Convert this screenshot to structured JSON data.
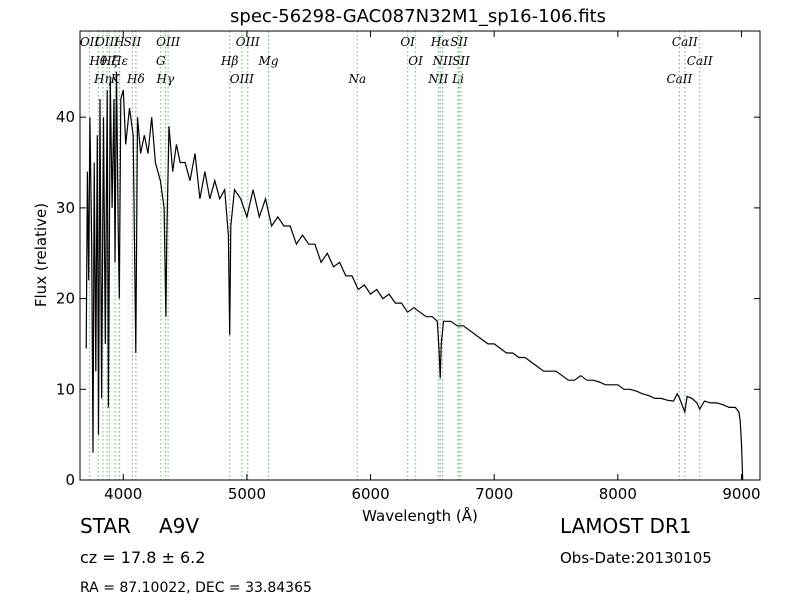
{
  "chart_data": {
    "type": "line",
    "title": "spec-56298-GAC087N32M1_sp16-106.fits",
    "xlabel": "Wavelength (Å)",
    "ylabel": "Flux (relative)",
    "xlim": [
      3650,
      9150
    ],
    "ylim": [
      0,
      49.5
    ],
    "xticks": [
      4000,
      5000,
      6000,
      7000,
      8000,
      9000
    ],
    "yticks": [
      0,
      10,
      20,
      30,
      40
    ],
    "grid": false,
    "line_color": "#000000",
    "marker_color": "#7fbf7f",
    "series": [
      {
        "values": [
          [
            3700,
            14.5
          ],
          [
            3710,
            34
          ],
          [
            3720,
            22
          ],
          [
            3730,
            40
          ],
          [
            3745,
            26
          ],
          [
            3755,
            3
          ],
          [
            3765,
            35
          ],
          [
            3778,
            12
          ],
          [
            3790,
            38
          ],
          [
            3800,
            5
          ],
          [
            3812,
            42
          ],
          [
            3825,
            9
          ],
          [
            3840,
            40
          ],
          [
            3855,
            15
          ],
          [
            3870,
            43
          ],
          [
            3880,
            8
          ],
          [
            3895,
            44
          ],
          [
            3910,
            30
          ],
          [
            3925,
            42
          ],
          [
            3933,
            24
          ],
          [
            3945,
            45
          ],
          [
            3960,
            27
          ],
          [
            3968,
            20
          ],
          [
            3980,
            42
          ],
          [
            4000,
            43
          ],
          [
            4020,
            37
          ],
          [
            4050,
            41
          ],
          [
            4080,
            38
          ],
          [
            4101,
            14
          ],
          [
            4115,
            40
          ],
          [
            4140,
            36
          ],
          [
            4170,
            38
          ],
          [
            4200,
            36
          ],
          [
            4230,
            40
          ],
          [
            4260,
            35
          ],
          [
            4300,
            33
          ],
          [
            4330,
            30
          ],
          [
            4340,
            22
          ],
          [
            4345,
            18
          ],
          [
            4352,
            27
          ],
          [
            4370,
            39
          ],
          [
            4400,
            34
          ],
          [
            4430,
            37
          ],
          [
            4460,
            35
          ],
          [
            4500,
            35
          ],
          [
            4540,
            33
          ],
          [
            4580,
            36
          ],
          [
            4620,
            31
          ],
          [
            4660,
            34
          ],
          [
            4700,
            31
          ],
          [
            4740,
            33
          ],
          [
            4780,
            31
          ],
          [
            4820,
            32
          ],
          [
            4850,
            27
          ],
          [
            4861,
            16
          ],
          [
            4870,
            28
          ],
          [
            4900,
            32
          ],
          [
            4950,
            31
          ],
          [
            5000,
            29
          ],
          [
            5050,
            32
          ],
          [
            5100,
            29
          ],
          [
            5150,
            31
          ],
          [
            5200,
            28
          ],
          [
            5250,
            29
          ],
          [
            5300,
            28
          ],
          [
            5350,
            28
          ],
          [
            5400,
            26
          ],
          [
            5450,
            27
          ],
          [
            5500,
            26
          ],
          [
            5550,
            26
          ],
          [
            5600,
            24
          ],
          [
            5650,
            25
          ],
          [
            5700,
            23.5
          ],
          [
            5750,
            24
          ],
          [
            5800,
            22.5
          ],
          [
            5850,
            22.5
          ],
          [
            5900,
            21
          ],
          [
            5950,
            21.5
          ],
          [
            6000,
            20.5
          ],
          [
            6050,
            21
          ],
          [
            6100,
            20
          ],
          [
            6150,
            20.5
          ],
          [
            6200,
            19.5
          ],
          [
            6250,
            19.5
          ],
          [
            6300,
            18.5
          ],
          [
            6350,
            19
          ],
          [
            6400,
            18.5
          ],
          [
            6450,
            18
          ],
          [
            6500,
            18
          ],
          [
            6540,
            17.5
          ],
          [
            6555,
            14
          ],
          [
            6563,
            11.2
          ],
          [
            6572,
            15
          ],
          [
            6590,
            17.5
          ],
          [
            6650,
            17.5
          ],
          [
            6700,
            17
          ],
          [
            6750,
            17
          ],
          [
            6800,
            16.5
          ],
          [
            6850,
            16
          ],
          [
            6900,
            15.5
          ],
          [
            6950,
            15
          ],
          [
            7000,
            15
          ],
          [
            7050,
            14.5
          ],
          [
            7100,
            14
          ],
          [
            7150,
            14
          ],
          [
            7200,
            13.5
          ],
          [
            7250,
            13.5
          ],
          [
            7300,
            13
          ],
          [
            7350,
            12.5
          ],
          [
            7400,
            12
          ],
          [
            7450,
            12
          ],
          [
            7500,
            12
          ],
          [
            7550,
            11.5
          ],
          [
            7600,
            11
          ],
          [
            7650,
            11
          ],
          [
            7700,
            11.5
          ],
          [
            7750,
            11
          ],
          [
            7800,
            11
          ],
          [
            7850,
            10.8
          ],
          [
            7900,
            10.5
          ],
          [
            7950,
            10.5
          ],
          [
            8000,
            10.5
          ],
          [
            8050,
            10
          ],
          [
            8100,
            10
          ],
          [
            8150,
            9.8
          ],
          [
            8200,
            9.5
          ],
          [
            8250,
            9.3
          ],
          [
            8300,
            9
          ],
          [
            8350,
            9
          ],
          [
            8400,
            8.8
          ],
          [
            8450,
            8.7
          ],
          [
            8480,
            9.5
          ],
          [
            8500,
            9
          ],
          [
            8542,
            7.5
          ],
          [
            8560,
            9.2
          ],
          [
            8600,
            9
          ],
          [
            8640,
            8.5
          ],
          [
            8662,
            7.8
          ],
          [
            8700,
            8.7
          ],
          [
            8750,
            8.5
          ],
          [
            8800,
            8.5
          ],
          [
            8850,
            8.3
          ],
          [
            8900,
            8
          ],
          [
            8950,
            8
          ],
          [
            8980,
            7.5
          ],
          [
            8990,
            6.5
          ],
          [
            9000,
            4
          ],
          [
            9010,
            0
          ]
        ]
      }
    ],
    "lines": [
      {
        "label": "OII",
        "x": 3727
      },
      {
        "label": "Hθ",
        "x": 3798
      },
      {
        "label": "Hη",
        "x": 3835
      },
      {
        "label": "OIII",
        "x": 3869
      },
      {
        "label": "Hζ",
        "x": 3889
      },
      {
        "label": "K",
        "x": 3934
      },
      {
        "label": "H",
        "x": 3968
      },
      {
        "label": "Hε",
        "x": 3970
      },
      {
        "label": "Hδ",
        "x": 4102
      },
      {
        "label": "SII",
        "x": 4074
      },
      {
        "label": "G",
        "x": 4304
      },
      {
        "label": "Hγ",
        "x": 4340
      },
      {
        "label": "OIII",
        "x": 4363
      },
      {
        "label": "Hβ",
        "x": 4861
      },
      {
        "label": "OIII",
        "x": 4959
      },
      {
        "label": "OIII",
        "x": 5007
      },
      {
        "label": "Mg",
        "x": 5175
      },
      {
        "label": "Na",
        "x": 5893
      },
      {
        "label": "OI",
        "x": 6300
      },
      {
        "label": "OI",
        "x": 6364
      },
      {
        "label": "NII",
        "x": 6548
      },
      {
        "label": "Hα",
        "x": 6563
      },
      {
        "label": "NII",
        "x": 6583
      },
      {
        "label": "Li",
        "x": 6708
      },
      {
        "label": "SII",
        "x": 6716
      },
      {
        "label": "SII",
        "x": 6731
      },
      {
        "label": "CaII",
        "x": 8498
      },
      {
        "label": "CaII",
        "x": 8542
      },
      {
        "label": "CaII",
        "x": 8662
      }
    ]
  },
  "info": {
    "object_class": "STAR",
    "object_subclass": "A9V",
    "survey": "LAMOST DR1",
    "cz": "cz = 17.8 ± 6.2",
    "obs_date": "Obs-Date:20130105",
    "ra_dec": "RA = 87.10022, DEC = 33.84365"
  }
}
